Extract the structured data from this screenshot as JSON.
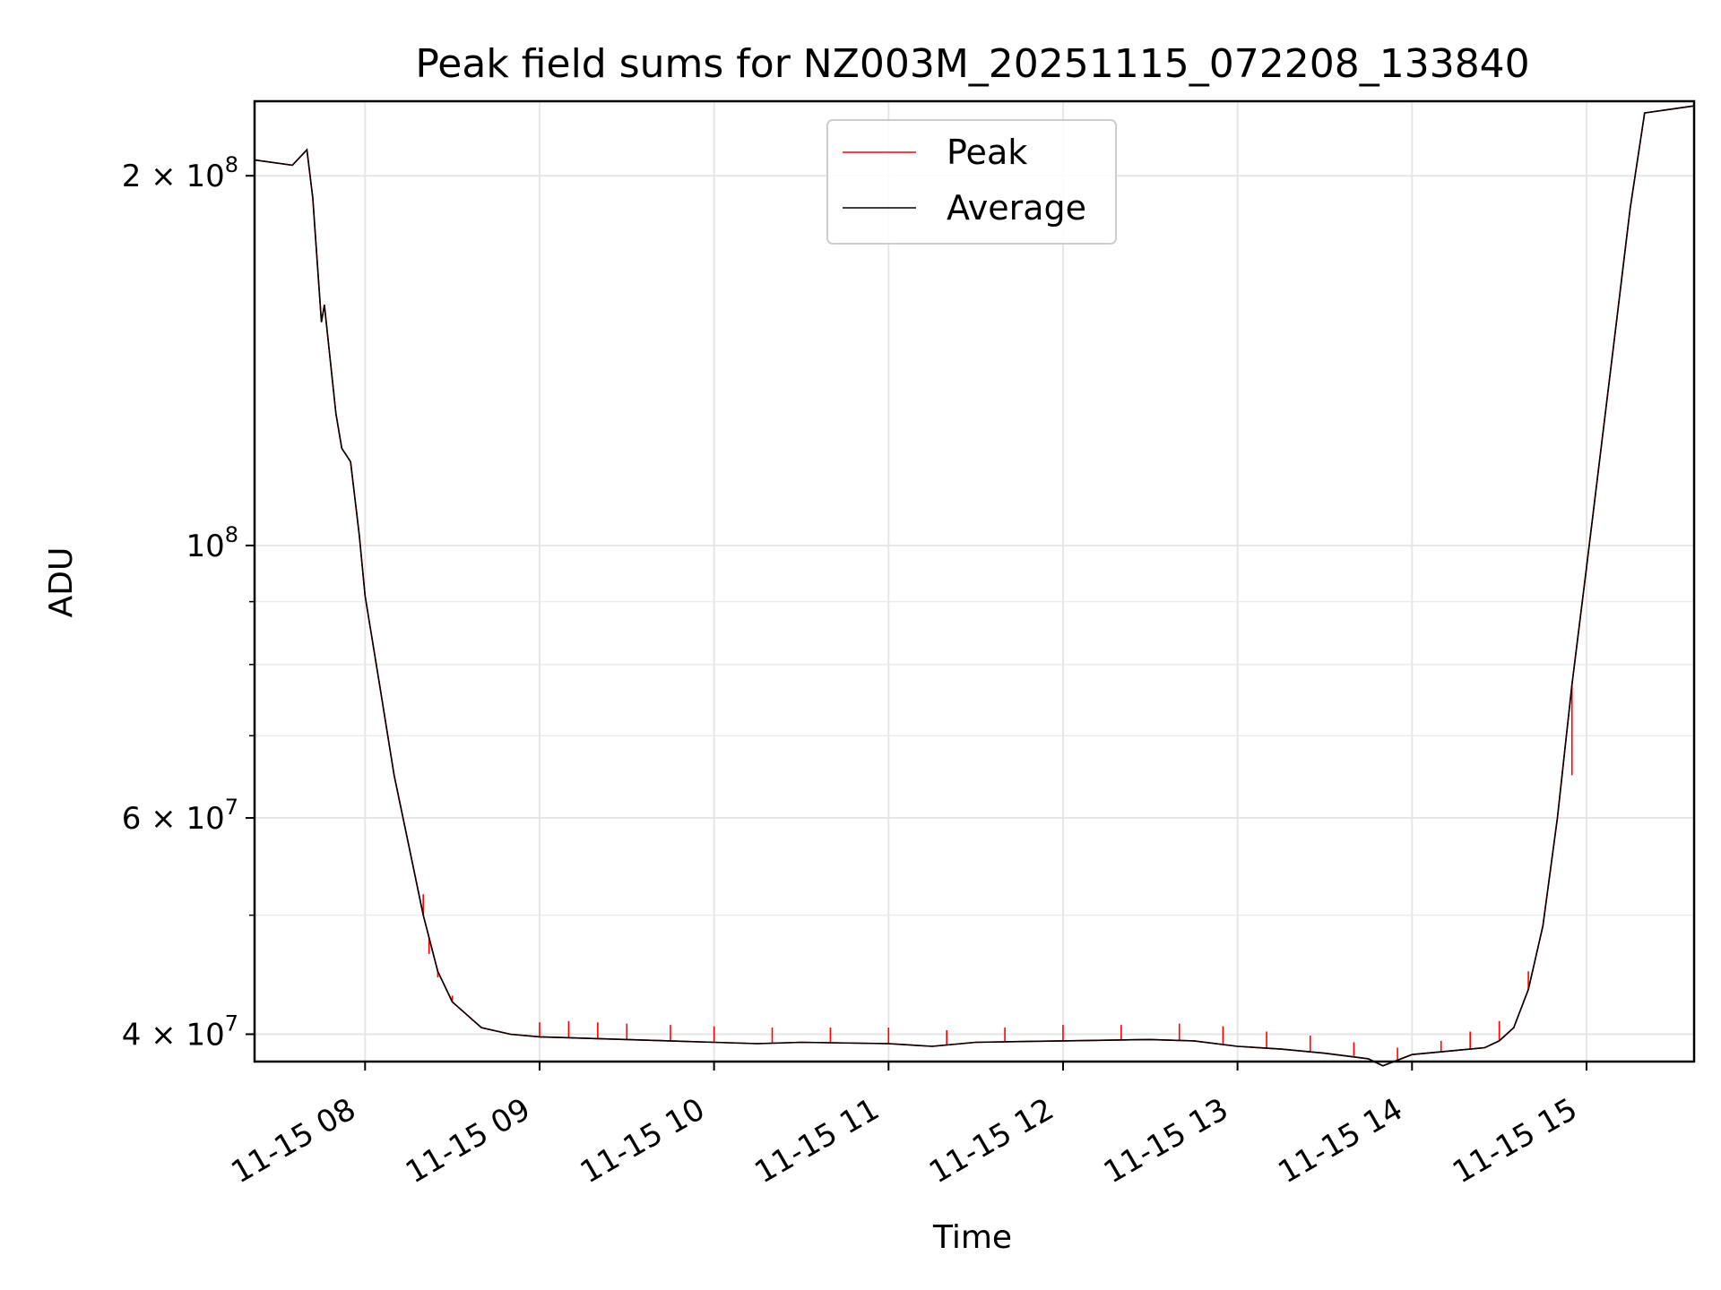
{
  "chart_data": {
    "type": "line",
    "title": "Peak field sums for NZ003M_20251115_072208_133840",
    "xlabel": "Time",
    "ylabel": "ADU",
    "yscale": "log",
    "ylim": [
      38000000,
      230000000
    ],
    "xlim": [
      "2025-11-15 07:22",
      "2025-11-15 15:37"
    ],
    "grid": true,
    "legend_position": "top-center",
    "x_ticks": [
      {
        "value": "2025-11-15 08:00",
        "label": "11-15 08"
      },
      {
        "value": "2025-11-15 09:00",
        "label": "11-15 09"
      },
      {
        "value": "2025-11-15 10:00",
        "label": "11-15 10"
      },
      {
        "value": "2025-11-15 11:00",
        "label": "11-15 11"
      },
      {
        "value": "2025-11-15 12:00",
        "label": "11-15 12"
      },
      {
        "value": "2025-11-15 13:00",
        "label": "11-15 13"
      },
      {
        "value": "2025-11-15 14:00",
        "label": "11-15 14"
      },
      {
        "value": "2025-11-15 15:00",
        "label": "11-15 15"
      }
    ],
    "y_major_ticks": [
      {
        "value": 40000000,
        "mantissa": "4",
        "exponent": "7"
      },
      {
        "value": 60000000,
        "mantissa": "6",
        "exponent": "7"
      },
      {
        "value": 100000000,
        "mantissa": "",
        "exponent": "8"
      },
      {
        "value": 200000000,
        "mantissa": "2",
        "exponent": "8"
      }
    ],
    "y_minor_ticks": [
      50000000,
      70000000,
      80000000,
      90000000,
      300000000
    ],
    "series": [
      {
        "name": "Average",
        "color": "#000000",
        "x": [
          "2025-11-15 07:22",
          "2025-11-15 07:35",
          "2025-11-15 07:40",
          "2025-11-15 07:42",
          "2025-11-15 07:45",
          "2025-11-15 07:46",
          "2025-11-15 07:50",
          "2025-11-15 07:52",
          "2025-11-15 07:55",
          "2025-11-15 07:58",
          "2025-11-15 08:00",
          "2025-11-15 08:05",
          "2025-11-15 08:10",
          "2025-11-15 08:15",
          "2025-11-15 08:20",
          "2025-11-15 08:25",
          "2025-11-15 08:30",
          "2025-11-15 08:40",
          "2025-11-15 08:50",
          "2025-11-15 09:00",
          "2025-11-15 09:30",
          "2025-11-15 10:00",
          "2025-11-15 10:15",
          "2025-11-15 10:30",
          "2025-11-15 11:00",
          "2025-11-15 11:15",
          "2025-11-15 11:30",
          "2025-11-15 12:00",
          "2025-11-15 12:30",
          "2025-11-15 12:45",
          "2025-11-15 13:00",
          "2025-11-15 13:15",
          "2025-11-15 13:30",
          "2025-11-15 13:45",
          "2025-11-15 13:50",
          "2025-11-15 14:00",
          "2025-11-15 14:15",
          "2025-11-15 14:25",
          "2025-11-15 14:30",
          "2025-11-15 14:35",
          "2025-11-15 14:40",
          "2025-11-15 14:45",
          "2025-11-15 14:50",
          "2025-11-15 14:55",
          "2025-11-15 15:00",
          "2025-11-15 15:05",
          "2025-11-15 15:10",
          "2025-11-15 15:15",
          "2025-11-15 15:20",
          "2025-11-15 15:37"
        ],
        "values": [
          206000000,
          204000000,
          210000000,
          192000000,
          152000000,
          157000000,
          128000000,
          120000000,
          117000000,
          102000000,
          91000000,
          77000000,
          65000000,
          57000000,
          50000000,
          45000000,
          42500000,
          40500000,
          40000000,
          39800000,
          39600000,
          39400000,
          39300000,
          39400000,
          39300000,
          39100000,
          39400000,
          39500000,
          39600000,
          39500000,
          39100000,
          38900000,
          38600000,
          38200000,
          37700000,
          38500000,
          38800000,
          39000000,
          39500000,
          40500000,
          43500000,
          49000000,
          60000000,
          77000000,
          96000000,
          120000000,
          150000000,
          188000000,
          225000000,
          228000000
        ]
      },
      {
        "name": "Peak",
        "color": "#ff0000",
        "spikes": [
          {
            "x": "2025-11-15 08:20",
            "value": 52000000
          },
          {
            "x": "2025-11-15 08:22",
            "value": 46500000
          },
          {
            "x": "2025-11-15 08:25",
            "value": 44500000
          },
          {
            "x": "2025-11-15 08:30",
            "value": 43000000
          },
          {
            "x": "2025-11-15 08:37",
            "value": 41000000
          },
          {
            "x": "2025-11-15 09:00",
            "value": 40900000
          },
          {
            "x": "2025-11-15 09:10",
            "value": 41000000
          },
          {
            "x": "2025-11-15 09:20",
            "value": 40900000
          },
          {
            "x": "2025-11-15 09:30",
            "value": 40800000
          },
          {
            "x": "2025-11-15 09:45",
            "value": 40700000
          },
          {
            "x": "2025-11-15 10:00",
            "value": 40600000
          },
          {
            "x": "2025-11-15 10:20",
            "value": 40500000
          },
          {
            "x": "2025-11-15 10:40",
            "value": 40500000
          },
          {
            "x": "2025-11-15 11:00",
            "value": 40500000
          },
          {
            "x": "2025-11-15 11:20",
            "value": 40300000
          },
          {
            "x": "2025-11-15 11:40",
            "value": 40500000
          },
          {
            "x": "2025-11-15 12:00",
            "value": 40700000
          },
          {
            "x": "2025-11-15 12:20",
            "value": 40700000
          },
          {
            "x": "2025-11-15 12:40",
            "value": 40800000
          },
          {
            "x": "2025-11-15 12:55",
            "value": 40600000
          },
          {
            "x": "2025-11-15 13:10",
            "value": 40200000
          },
          {
            "x": "2025-11-15 13:25",
            "value": 39900000
          },
          {
            "x": "2025-11-15 13:40",
            "value": 39400000
          },
          {
            "x": "2025-11-15 13:55",
            "value": 39000000
          },
          {
            "x": "2025-11-15 14:10",
            "value": 39500000
          },
          {
            "x": "2025-11-15 14:20",
            "value": 40200000
          },
          {
            "x": "2025-11-15 14:30",
            "value": 41000000
          },
          {
            "x": "2025-11-15 14:40",
            "value": 45000000
          },
          {
            "x": "2025-11-15 14:55",
            "value": 65000000
          }
        ]
      }
    ]
  }
}
